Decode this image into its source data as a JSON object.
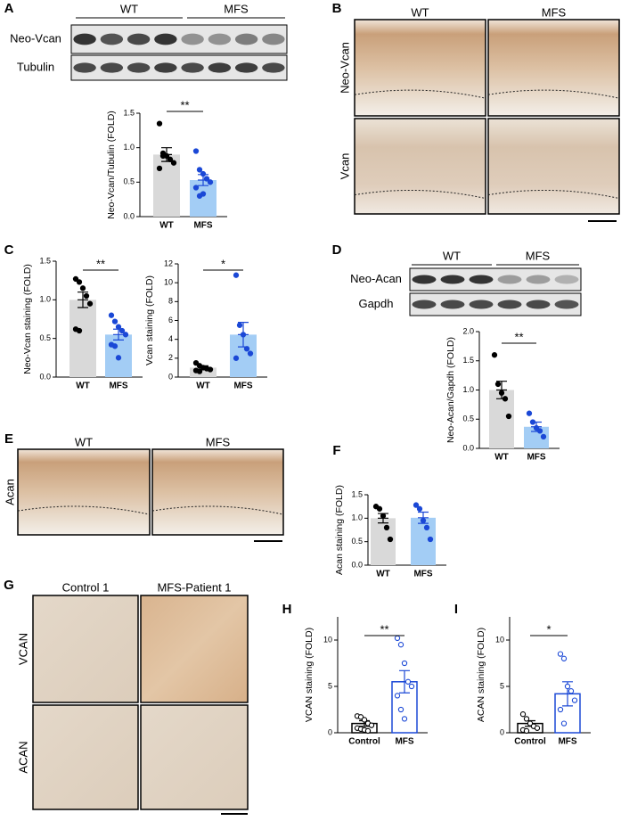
{
  "panels": {
    "letters": [
      "A",
      "B",
      "C",
      "D",
      "E",
      "F",
      "G",
      "H",
      "I"
    ],
    "blot_A": {
      "groups": [
        "WT",
        "MFS"
      ],
      "rows": [
        "Neo-Vcan",
        "Tubulin"
      ]
    },
    "histo_B": {
      "cols": [
        "WT",
        "MFS"
      ],
      "rows": [
        "Neo-Vcan",
        "Vcan"
      ]
    },
    "blot_D": {
      "groups": [
        "WT",
        "MFS"
      ],
      "rows": [
        "Neo-Acan",
        "Gapdh"
      ]
    },
    "histo_E": {
      "cols": [
        "WT",
        "MFS"
      ],
      "rows": [
        "Acan"
      ]
    },
    "histo_G": {
      "cols": [
        "Control 1",
        "MFS-Patient 1"
      ],
      "rows": [
        "VCAN",
        "ACAN"
      ]
    }
  },
  "chart_data": [
    {
      "type": "bar",
      "ylabel": "Neo-Vcan/Tubulin (FOLD)",
      "categories": [
        "WT",
        "MFS"
      ],
      "values": [
        0.9,
        0.53
      ],
      "errors": [
        0.1,
        0.08
      ],
      "points": [
        [
          1.35,
          0.92,
          0.88,
          0.83,
          0.78,
          0.7,
          0.88
        ],
        [
          0.95,
          0.68,
          0.62,
          0.55,
          0.5,
          0.42,
          0.3,
          0.33
        ]
      ],
      "bar_colors": [
        "#d9d9d9",
        "#a3cdf5"
      ],
      "point_colors": [
        "#000000",
        "#1b48d6"
      ],
      "hollow": false,
      "ylim": [
        0,
        1.5
      ],
      "yticks": [
        {
          "value": 0,
          "label": "0.0"
        },
        0.5,
        {
          "value": 1,
          "label": "1.0"
        },
        1.5
      ],
      "annotation": "**"
    },
    {
      "type": "bar",
      "ylabel": "Neo-Vcan staining (FOLD)",
      "categories": [
        "WT",
        "MFS"
      ],
      "values": [
        1.0,
        0.55
      ],
      "errors": [
        0.1,
        0.07
      ],
      "points": [
        [
          1.27,
          1.23,
          1.15,
          1.05,
          0.95,
          0.62,
          0.6
        ],
        [
          0.8,
          0.72,
          0.65,
          0.6,
          0.55,
          0.42,
          0.4,
          0.25
        ]
      ],
      "bar_colors": [
        "#d9d9d9",
        "#a3cdf5"
      ],
      "point_colors": [
        "#000000",
        "#1b48d6"
      ],
      "hollow": false,
      "ylim": [
        0,
        1.5
      ],
      "yticks": [
        {
          "value": 0,
          "label": "0.0"
        },
        0.5,
        {
          "value": 1,
          "label": "1.0"
        },
        1.5
      ],
      "annotation": "**"
    },
    {
      "type": "bar",
      "ylabel": "Vcan staining (FOLD)",
      "categories": [
        "WT",
        "MFS"
      ],
      "values": [
        1.0,
        4.5
      ],
      "errors": [
        0.2,
        1.3
      ],
      "points": [
        [
          1.5,
          1.2,
          1.0,
          0.9,
          0.8,
          0.7,
          0.6
        ],
        [
          10.8,
          5.5,
          4.5,
          3.0,
          2.5,
          2.0
        ]
      ],
      "bar_colors": [
        "#d9d9d9",
        "#a3cdf5"
      ],
      "point_colors": [
        "#000000",
        "#1b48d6"
      ],
      "hollow": false,
      "ylim": [
        0,
        12
      ],
      "yticks": [
        0,
        2,
        4,
        6,
        8,
        10,
        12
      ],
      "annotation": "*"
    },
    {
      "type": "bar",
      "ylabel": "Neo-Acan/Gapdh (FOLD)",
      "categories": [
        "WT",
        "MFS"
      ],
      "values": [
        1.0,
        0.37
      ],
      "errors": [
        0.15,
        0.08
      ],
      "points": [
        [
          1.6,
          1.1,
          0.95,
          0.85,
          0.55
        ],
        [
          0.6,
          0.45,
          0.35,
          0.3,
          0.2
        ]
      ],
      "bar_colors": [
        "#d9d9d9",
        "#a3cdf5"
      ],
      "point_colors": [
        "#000000",
        "#1b48d6"
      ],
      "hollow": false,
      "ylim": [
        0,
        2
      ],
      "yticks": [
        {
          "value": 0,
          "label": "0.0"
        },
        0.5,
        {
          "value": 1,
          "label": "1.0"
        },
        1.5,
        {
          "value": 2,
          "label": "2.0"
        }
      ],
      "annotation": "**"
    },
    {
      "type": "bar",
      "ylabel": "Acan staining (FOLD)",
      "categories": [
        "WT",
        "MFS"
      ],
      "values": [
        1.0,
        1.01
      ],
      "errors": [
        0.1,
        0.12
      ],
      "points": [
        [
          1.25,
          1.2,
          1.05,
          0.8,
          0.55
        ],
        [
          1.28,
          1.2,
          0.95,
          0.8,
          0.55
        ]
      ],
      "bar_colors": [
        "#d9d9d9",
        "#a3cdf5"
      ],
      "point_colors": [
        "#000000",
        "#1b48d6"
      ],
      "hollow": false,
      "ylim": [
        0,
        1.5
      ],
      "yticks": [
        {
          "value": 0,
          "label": "0.0"
        },
        0.5,
        {
          "value": 1,
          "label": "1.0"
        },
        1.5
      ]
    },
    {
      "type": "bar",
      "ylabel": "VCAN staining (FOLD)",
      "categories": [
        "Control",
        "MFS"
      ],
      "values": [
        1.0,
        5.5
      ],
      "errors": [
        0.3,
        1.2
      ],
      "points": [
        [
          1.8,
          1.7,
          1.4,
          1.0,
          0.8,
          0.5,
          0.4,
          0.3,
          0.2
        ],
        [
          10.2,
          9.5,
          7.5,
          5.5,
          5.0,
          4.0,
          2.5,
          1.5
        ]
      ],
      "bar_colors": [
        "#000000",
        "#1b48d6"
      ],
      "point_colors": [
        "#000000",
        "#1b48d6"
      ],
      "hollow": true,
      "ylim": [
        0,
        12.5
      ],
      "yticks": [
        0,
        5,
        10
      ],
      "annotation": "**"
    },
    {
      "type": "bar",
      "ylabel": "ACAN staining (FOLD)",
      "categories": [
        "Control",
        "MFS"
      ],
      "values": [
        1.0,
        4.2
      ],
      "errors": [
        0.3,
        1.3
      ],
      "points": [
        [
          2.0,
          1.5,
          1.0,
          0.7,
          0.5,
          0.3,
          0.2
        ],
        [
          8.5,
          8.0,
          5.0,
          4.5,
          3.5,
          2.5,
          1.0
        ]
      ],
      "bar_colors": [
        "#000000",
        "#1b48d6"
      ],
      "point_colors": [
        "#000000",
        "#1b48d6"
      ],
      "hollow": true,
      "ylim": [
        0,
        12.5
      ],
      "yticks": [
        0,
        5,
        10
      ],
      "annotation": "*"
    }
  ]
}
